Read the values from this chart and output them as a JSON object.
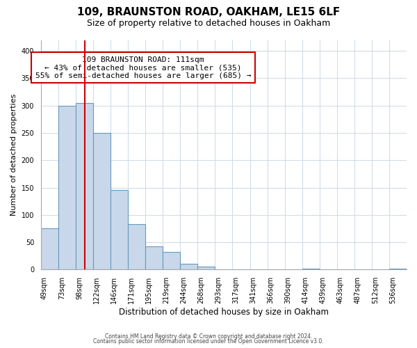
{
  "title": "109, BRAUNSTON ROAD, OAKHAM, LE15 6LF",
  "subtitle": "Size of property relative to detached houses in Oakham",
  "xlabel": "Distribution of detached houses by size in Oakham",
  "ylabel": "Number of detached properties",
  "bin_labels": [
    "49sqm",
    "73sqm",
    "98sqm",
    "122sqm",
    "146sqm",
    "171sqm",
    "195sqm",
    "219sqm",
    "244sqm",
    "268sqm",
    "293sqm",
    "317sqm",
    "341sqm",
    "366sqm",
    "390sqm",
    "414sqm",
    "439sqm",
    "463sqm",
    "487sqm",
    "512sqm",
    "536sqm"
  ],
  "bar_heights": [
    75,
    300,
    305,
    250,
    145,
    83,
    43,
    32,
    10,
    6,
    0,
    0,
    0,
    0,
    0,
    2,
    0,
    0,
    0,
    0,
    2
  ],
  "bar_color": "#c8d8ea",
  "bar_edge_color": "#6699bb",
  "property_line_bin": 2.5,
  "property_line_color": "#cc0000",
  "annotation_line1": "109 BRAUNSTON ROAD: 111sqm",
  "annotation_line2": "← 43% of detached houses are smaller (535)",
  "annotation_line3": "55% of semi-detached houses are larger (685) →",
  "annotation_box_color": "#ffffff",
  "annotation_box_edge": "#cc0000",
  "ylim": [
    0,
    420
  ],
  "yticks": [
    0,
    50,
    100,
    150,
    200,
    250,
    300,
    350,
    400
  ],
  "footer_line1": "Contains HM Land Registry data © Crown copyright and database right 2024.",
  "footer_line2": "Contains public sector information licensed under the Open Government Licence v3.0.",
  "bg_color": "#ffffff",
  "grid_color": "#d0dce8",
  "title_fontsize": 11,
  "subtitle_fontsize": 9,
  "ylabel_fontsize": 8,
  "xlabel_fontsize": 8.5,
  "tick_fontsize": 7,
  "annot_fontsize": 8,
  "footer_fontsize": 5.5
}
